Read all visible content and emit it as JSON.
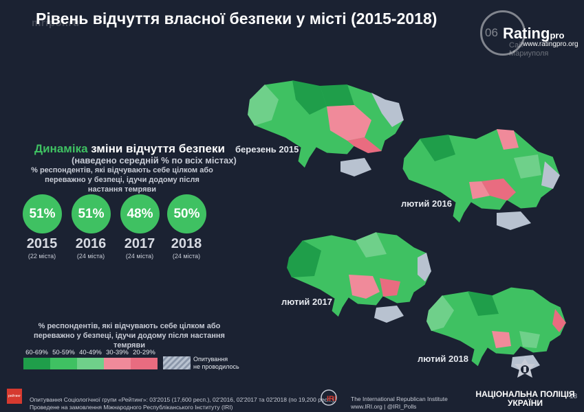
{
  "watermark": "mripol.ru",
  "title": "Рівень відчуття власної безпеки у місті (2015-2018)",
  "logo": {
    "prefix": "06",
    "name": "Rating",
    "suffix": "pro",
    "url": "www.ratingpro.org",
    "city_line1": "Сай",
    "city_line2": "Мариуполя"
  },
  "dynamics": {
    "title_accent": "Динаміка",
    "title_rest": " зміни відчуття безпеки",
    "subtitle": "(наведено середній % по всіх містах)",
    "note": "% респондентів, які відчувають себе цілком або переважно у безпеці, ідучи додому після настання темряви",
    "items": [
      {
        "percent": "51%",
        "year": "2015",
        "cities": "(22 міста)"
      },
      {
        "percent": "51%",
        "year": "2016",
        "cities": "(24 міста)"
      },
      {
        "percent": "48%",
        "year": "2017",
        "cities": "(24 міста)"
      },
      {
        "percent": "50%",
        "year": "2018",
        "cities": "(24 міста)"
      }
    ]
  },
  "legend": {
    "title": "% респондентів, які відчувають себе цілком або переважно у безпеці, ідучи додому після настання темряви",
    "items": [
      {
        "label": "60-69%",
        "color": "#1f9e4a"
      },
      {
        "label": "50-59%",
        "color": "#3fc162"
      },
      {
        "label": "40-49%",
        "color": "#6fd08a"
      },
      {
        "label": "30-39%",
        "color": "#f08a9a"
      },
      {
        "label": "20-29%",
        "color": "#e96c80"
      }
    ],
    "not_conducted_line1": "Опитування",
    "not_conducted_line2": "не проводилось"
  },
  "maps": [
    {
      "label": "березень 2015"
    },
    {
      "label": "лютий 2016"
    },
    {
      "label": "лютий 2017"
    },
    {
      "label": "лютий 2018"
    }
  ],
  "footer": {
    "badge": "рейтинг",
    "source_line1": "Опитування Соціологічної групи «Рейтинг»: 03'2015 (17,600 респ.), 02'2016, 02'2017 та 02'2018 (по 19,200 респ.)",
    "source_line2": "Проведене на замовлення Міжнародного Республіканського Інституту (IRI)",
    "iri_line1": "The International Republican Institute",
    "iri_line2": "www.IRI.org | @IRI_Polls",
    "police_line1": "НАЦІОНАЛЬНА ПОЛІЦІЯ",
    "police_line2": "УКРАЇНИ",
    "page": "18"
  }
}
